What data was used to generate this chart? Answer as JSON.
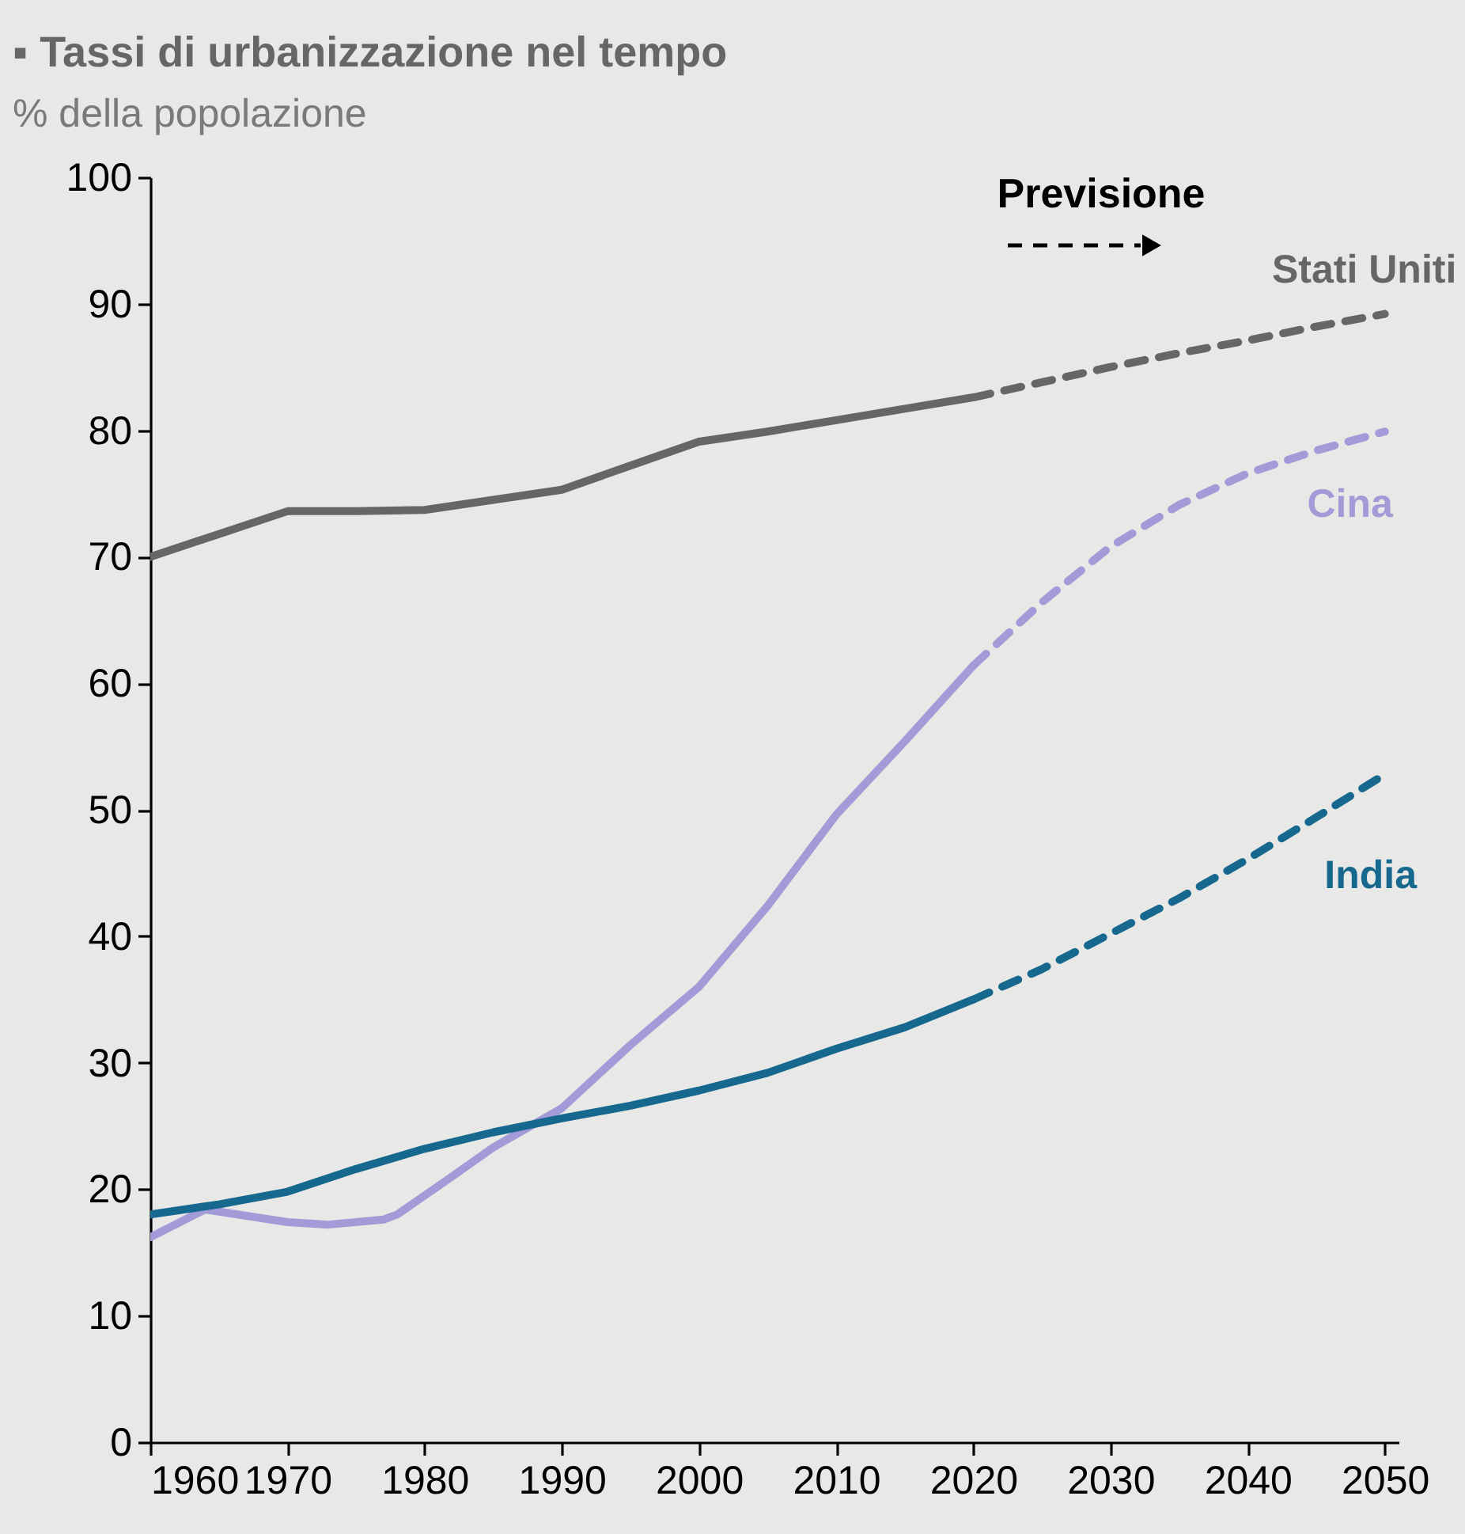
{
  "chart_data": {
    "type": "line",
    "title": "▪ Tassi di urbanizzazione nel tempo",
    "subtitle": "% della popolazione",
    "annotations": [
      "Previsione"
    ],
    "xlim": [
      1960,
      2051
    ],
    "xticks": [
      1960,
      1970,
      1980,
      1990,
      2000,
      2010,
      2020,
      2030,
      2040,
      2050
    ],
    "ylim": [
      0,
      100
    ],
    "yticks": [
      0,
      10,
      20,
      30,
      40,
      50,
      60,
      70,
      80,
      90,
      100
    ],
    "series": [
      {
        "color": "#666666",
        "line_style": "solid",
        "x": [
          1960,
          1965,
          1970,
          1975,
          1980,
          1985,
          1990,
          1995,
          2000,
          2005,
          2010,
          2015,
          2020
        ],
        "values": [
          70.0,
          71.8,
          73.6,
          73.6,
          73.7,
          74.5,
          75.3,
          77.2,
          79.1,
          79.9,
          80.8,
          81.7,
          82.6
        ]
      },
      {
        "name": "Stati Uniti",
        "color": "#666666",
        "line_style": "dashed",
        "x": [
          2020,
          2025,
          2030,
          2035,
          2040,
          2045,
          2050
        ],
        "values": [
          82.6,
          83.8,
          85.0,
          86.1,
          87.1,
          88.2,
          89.2
        ]
      },
      {
        "color": "#a39bd7",
        "line_style": "solid",
        "x": [
          1960,
          1964,
          1970,
          1973,
          1977,
          1978,
          1982,
          1985,
          1990,
          1995,
          2000,
          2005,
          2010,
          2015,
          2020
        ],
        "values": [
          16.2,
          18.4,
          17.4,
          17.2,
          17.6,
          18.0,
          21.0,
          23.3,
          26.4,
          31.4,
          36.0,
          42.4,
          49.6,
          55.4,
          61.4
        ]
      },
      {
        "name": "Cina",
        "color": "#a39bd7",
        "line_style": "dashed",
        "x": [
          2020,
          2025,
          2030,
          2035,
          2040,
          2045,
          2050
        ],
        "values": [
          61.4,
          66.4,
          70.8,
          74.1,
          76.6,
          78.4,
          79.9
        ]
      },
      {
        "color": "#17688f",
        "line_style": "solid",
        "x": [
          1960,
          1965,
          1970,
          1975,
          1980,
          1985,
          1990,
          1995,
          2000,
          2005,
          2010,
          2015,
          2020
        ],
        "values": [
          18.0,
          18.8,
          19.8,
          21.6,
          23.2,
          24.5,
          25.6,
          26.6,
          27.8,
          29.2,
          31.1,
          32.8,
          35.0
        ]
      },
      {
        "name": "India",
        "color": "#17688f",
        "line_style": "dashed",
        "x": [
          2020,
          2025,
          2030,
          2035,
          2040,
          2045,
          2050
        ],
        "values": [
          35.0,
          37.4,
          40.2,
          43.0,
          46.1,
          49.4,
          52.8
        ]
      }
    ]
  }
}
